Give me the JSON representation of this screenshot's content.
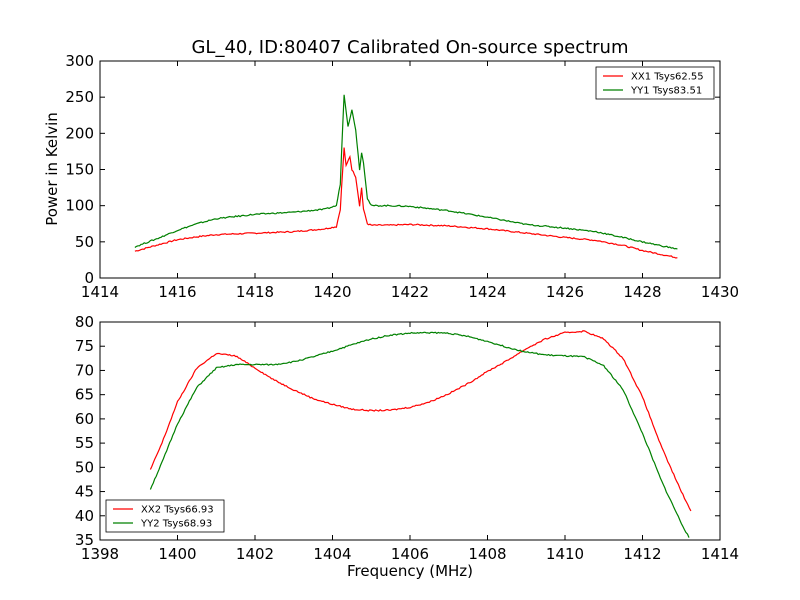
{
  "chart_data": {
    "title": "GL_40, ID:80407 Calibrated On-source spectrum",
    "xlabel": "Frequency (MHz)",
    "panels": [
      {
        "type": "line",
        "ylabel": "Power in Kelvin",
        "xlim": [
          1414,
          1430
        ],
        "ylim": [
          0,
          300
        ],
        "xticks": [
          1414,
          1416,
          1418,
          1420,
          1422,
          1424,
          1426,
          1428,
          1430
        ],
        "yticks": [
          0,
          50,
          100,
          150,
          200,
          250,
          300
        ],
        "legend_position": "top-right",
        "series": [
          {
            "name": "XX1 Tsys62.55",
            "color": "#ff0000",
            "x": [
              1414.9,
              1415.5,
              1416.0,
              1416.5,
              1417.0,
              1418.0,
              1419.0,
              1419.8,
              1420.1,
              1420.2,
              1420.3,
              1420.35,
              1420.45,
              1420.5,
              1420.6,
              1420.7,
              1420.75,
              1420.8,
              1420.9,
              1421.0,
              1421.5,
              1422.0,
              1423.0,
              1424.0,
              1425.0,
              1426.0,
              1426.8,
              1427.5,
              1428.0,
              1428.9
            ],
            "y": [
              37,
              46,
              53,
              57,
              60,
              62,
              64,
              68,
              71,
              95,
              180,
              155,
              168,
              150,
              140,
              100,
              125,
              95,
              75,
              73,
              73,
              74,
              72,
              68,
              62,
              56,
              52,
              45,
              38,
              28
            ]
          },
          {
            "name": "YY1 Tsys83.51",
            "color": "#008000",
            "x": [
              1414.9,
              1415.5,
              1416.0,
              1416.5,
              1417.0,
              1418.0,
              1419.0,
              1419.8,
              1420.1,
              1420.2,
              1420.3,
              1420.4,
              1420.5,
              1420.6,
              1420.7,
              1420.75,
              1420.8,
              1420.9,
              1421.0,
              1421.5,
              1422.0,
              1423.0,
              1424.0,
              1425.0,
              1426.0,
              1426.8,
              1427.5,
              1428.0,
              1428.9
            ],
            "y": [
              43,
              55,
              66,
              75,
              82,
              88,
              91,
              95,
              100,
              130,
              254,
              210,
              232,
              205,
              150,
              173,
              160,
              110,
              100,
              100,
              99,
              93,
              84,
              74,
              69,
              64,
              56,
              50,
              40
            ]
          }
        ]
      },
      {
        "type": "line",
        "xlim": [
          1398,
          1414
        ],
        "ylim": [
          35,
          80
        ],
        "xticks": [
          1398,
          1400,
          1402,
          1404,
          1406,
          1408,
          1410,
          1412,
          1414
        ],
        "yticks": [
          35,
          40,
          45,
          50,
          55,
          60,
          65,
          70,
          75,
          80
        ],
        "legend_position": "bottom-left",
        "series": [
          {
            "name": "XX2 Tsys66.93",
            "color": "#ff0000",
            "x": [
              1399.3,
              1399.6,
              1400.0,
              1400.5,
              1401.0,
              1401.5,
              1402.0,
              1402.5,
              1403.0,
              1403.5,
              1404.0,
              1404.5,
              1405.0,
              1405.5,
              1406.0,
              1406.5,
              1407.0,
              1407.5,
              1408.0,
              1408.5,
              1409.0,
              1409.5,
              1410.0,
              1410.5,
              1411.0,
              1411.5,
              1412.0,
              1412.5,
              1413.0,
              1413.25
            ],
            "y": [
              49.5,
              55,
              63.5,
              70.5,
              73.5,
              73,
              70.5,
              68,
              66,
              64.2,
              63,
              62,
              61.7,
              61.8,
              62.4,
              63.5,
              65.2,
              67.3,
              69.8,
              72,
              74.5,
              76.5,
              77.8,
              78.1,
              76.5,
              72.5,
              64.5,
              54,
              45,
              41
            ]
          },
          {
            "name": "YY2 Tsys68.93",
            "color": "#008000",
            "x": [
              1399.3,
              1399.6,
              1400.0,
              1400.5,
              1401.0,
              1401.5,
              1402.0,
              1402.5,
              1403.0,
              1403.5,
              1404.0,
              1404.5,
              1405.0,
              1405.5,
              1406.0,
              1406.5,
              1407.0,
              1407.5,
              1408.0,
              1408.5,
              1409.0,
              1409.5,
              1410.0,
              1410.5,
              1411.0,
              1411.5,
              1412.0,
              1412.5,
              1413.0,
              1413.2
            ],
            "y": [
              45.5,
              51,
              59,
              66.5,
              70.5,
              71.2,
              71.2,
              71.2,
              71.8,
              72.8,
              74,
              75.3,
              76.5,
              77.3,
              77.7,
              77.8,
              77.7,
              77,
              76,
              74.8,
              73.8,
              73.2,
              73,
              72.8,
              71,
              66,
              57,
              47,
              38.5,
              35.5
            ]
          }
        ]
      }
    ]
  }
}
